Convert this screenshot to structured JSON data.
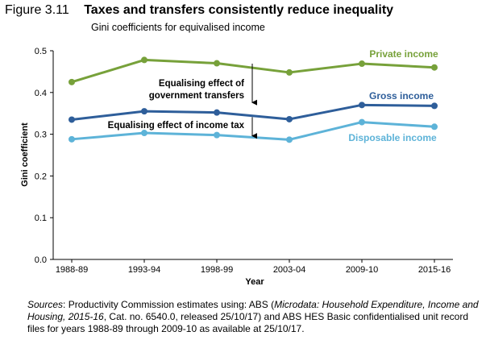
{
  "figure": {
    "number": "Figure 3.11",
    "title": "Taxes and transfers consistently reduce inequality",
    "subtitle": "Gini coefficients for equivalised income"
  },
  "chart_data": {
    "type": "line",
    "title": "Taxes and transfers consistently reduce inequality",
    "subtitle": "Gini coefficients for equivalised income",
    "xlabel": "Year",
    "ylabel": "Gini coefficient",
    "categories": [
      "1988-89",
      "1993-94",
      "1998-99",
      "2003-04",
      "2009-10",
      "2015-16"
    ],
    "ylim": [
      0,
      0.5
    ],
    "yticks": [
      "0.0",
      "0.1",
      "0.2",
      "0.3",
      "0.4",
      "0.5"
    ],
    "grid": false,
    "series": [
      {
        "name": "Private income",
        "color": "#77a13a",
        "values": [
          0.425,
          0.478,
          0.47,
          0.448,
          0.469,
          0.46
        ]
      },
      {
        "name": "Gross income",
        "color": "#2e5e9a",
        "values": [
          0.335,
          0.355,
          0.352,
          0.336,
          0.37,
          0.368
        ]
      },
      {
        "name": "Disposable income",
        "color": "#5db3d8",
        "values": [
          0.288,
          0.303,
          0.298,
          0.287,
          0.329,
          0.318
        ]
      }
    ],
    "annotations": [
      {
        "lines": [
          "Equalising effect of",
          "government transfers"
        ],
        "arrow_from": 0.469,
        "arrow_to": 0.376
      },
      {
        "lines": [
          "Equalising effect of income tax"
        ],
        "arrow_from": 0.341,
        "arrow_to": 0.296
      }
    ]
  },
  "source": {
    "label": "Sources",
    "text_1": ": Productivity Commission estimates using: ABS (",
    "italic_1": "Microdata: Household Expenditure, Income and Housing, 2015-16",
    "text_2": ", Cat. no. 6540.0, released 25/10/17) and ABS HES Basic confidentialised unit record files for years 1988-89 through 2009-10 as available at 25/10/17."
  }
}
